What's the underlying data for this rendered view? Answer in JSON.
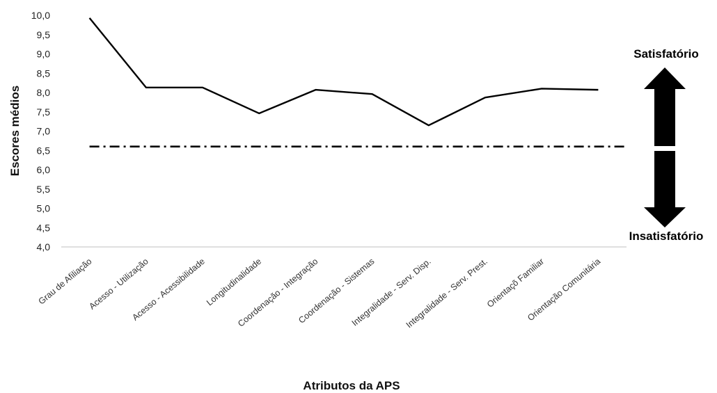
{
  "chart_data": {
    "type": "line",
    "categories": [
      "Grau de Afiliação",
      "Acesso - Utilização",
      "Acesso - Acessibilidade",
      "Longitudinalidade",
      "Coordenação - Integração",
      "Coordenação - Sistemas",
      "Integralidade - Serv. Disp.",
      "Integralidade - Serv. Prest.",
      "Orientaçõ Familiar",
      "Orientação Comunitária"
    ],
    "series": [
      {
        "values": [
          9.93,
          8.13,
          8.13,
          7.46,
          8.07,
          7.96,
          7.15,
          7.87,
          8.1,
          8.07
        ],
        "color": "#000000"
      }
    ],
    "reference_line": {
      "value": 6.6,
      "style": "dash-dot",
      "color": "#000000"
    },
    "ylim": [
      4.0,
      10.0
    ],
    "yticks": [
      "4,0",
      "4,5",
      "5,0",
      "5,5",
      "6,0",
      "6,5",
      "7,0",
      "7,5",
      "8,0",
      "8,5",
      "9,0",
      "9,5",
      "10,0"
    ],
    "xlabel": "Atributos da APS",
    "ylabel": "Escores médios",
    "grid": false,
    "annotations": {
      "upper": "Satisfatório",
      "lower": "Insatisfatório"
    }
  }
}
